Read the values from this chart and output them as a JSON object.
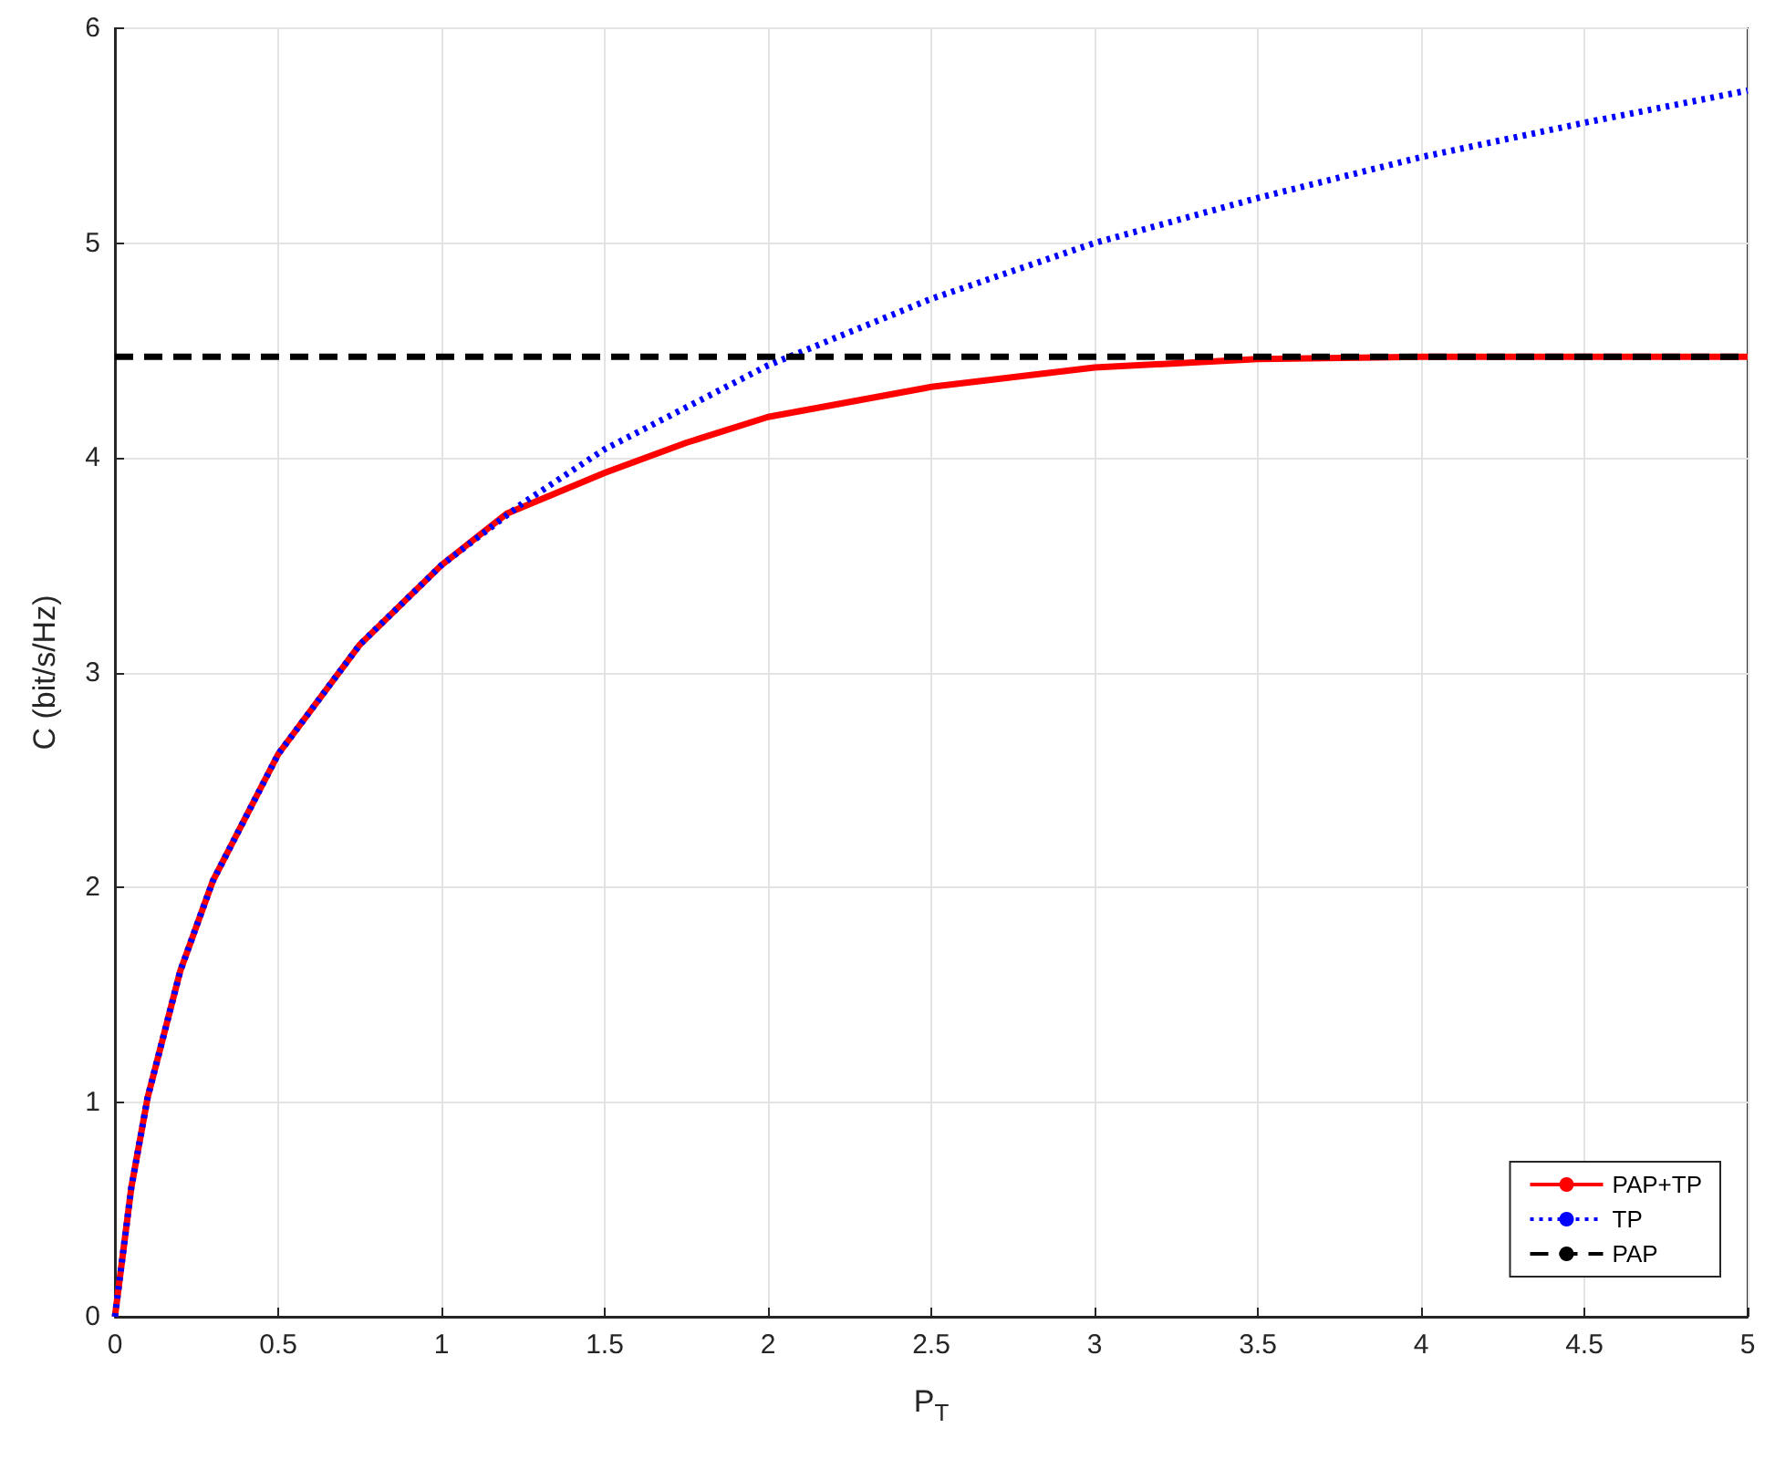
{
  "chart_data": {
    "type": "line",
    "xlabel": "P$_{T}$",
    "ylabel": "C (bit/s/Hz)",
    "xlim": [
      0,
      5
    ],
    "xticks": [
      0,
      0.5,
      1,
      1.5,
      2,
      2.5,
      3,
      3.5,
      4,
      4.5,
      5
    ],
    "ylim": [
      0,
      6
    ],
    "yticks": [
      0,
      1,
      2,
      3,
      4,
      5,
      6
    ],
    "grid": true,
    "legend": "bottom right",
    "marker": "none",
    "series": [
      {
        "name": "PAP+TP",
        "color": "#ff0000",
        "line_style": "solid",
        "x": [
          0,
          0.05,
          0.1,
          0.2,
          0.3,
          0.5,
          0.75,
          1,
          1.2,
          1.5,
          1.75,
          2,
          2.5,
          3,
          3.5,
          4,
          4.5,
          5
        ],
        "values": [
          0,
          0.6,
          1.02,
          1.61,
          2.03,
          2.62,
          3.13,
          3.5,
          3.74,
          3.93,
          4.07,
          4.19,
          4.33,
          4.42,
          4.46,
          4.47,
          4.47,
          4.47
        ]
      },
      {
        "name": "TP",
        "color": "#0000ff",
        "line_style": "dotted",
        "x": [
          0,
          0.05,
          0.1,
          0.2,
          0.3,
          0.5,
          0.75,
          1,
          1.25,
          1.5,
          2,
          2.5,
          3,
          3.5,
          4,
          4.5,
          5
        ],
        "values": [
          0,
          0.6,
          1.02,
          1.61,
          2.03,
          2.62,
          3.13,
          3.5,
          3.79,
          4.04,
          4.43,
          4.74,
          5.0,
          5.21,
          5.4,
          5.56,
          5.71
        ]
      },
      {
        "name": "PAP",
        "color": "#000000",
        "line_style": "dashed",
        "x": [
          0,
          5
        ],
        "values": [
          4.47,
          4.47
        ]
      }
    ]
  }
}
